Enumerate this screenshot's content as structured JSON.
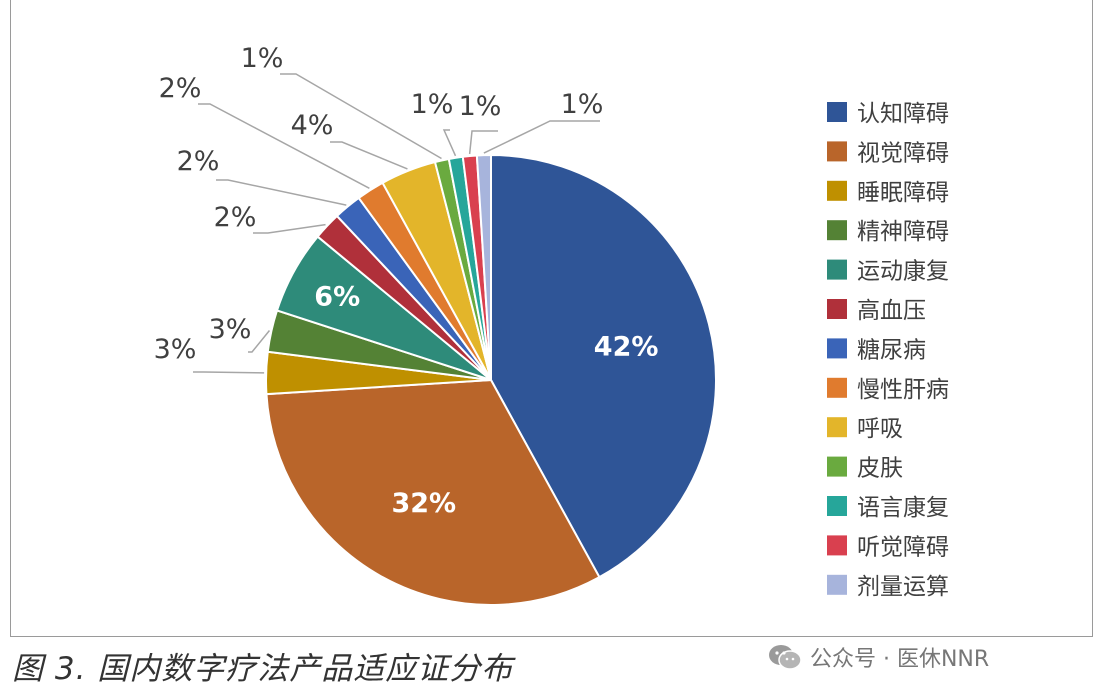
{
  "chart_data": {
    "type": "pie",
    "title": "",
    "legend_position": "right",
    "slices": [
      {
        "label": "认知障碍",
        "value": 42,
        "display": "42%",
        "color": "#2f5597"
      },
      {
        "label": "视觉障碍",
        "value": 32,
        "display": "32%",
        "color": "#b9652a"
      },
      {
        "label": "睡眠障碍",
        "value": 3,
        "display": "3%",
        "color": "#bf9000"
      },
      {
        "label": "精神障碍",
        "value": 3,
        "display": "3%",
        "color": "#548235"
      },
      {
        "label": "运动康复",
        "value": 6,
        "display": "6%",
        "color": "#2e8b7a"
      },
      {
        "label": "高血压",
        "value": 2,
        "display": "2%",
        "color": "#b0303a"
      },
      {
        "label": "糖尿病",
        "value": 2,
        "display": "2%",
        "color": "#3a64b8"
      },
      {
        "label": "慢性肝病",
        "value": 2,
        "display": "2%",
        "color": "#e07b2e"
      },
      {
        "label": "呼吸",
        "value": 4,
        "display": "4%",
        "color": "#e3b52a"
      },
      {
        "label": "皮肤",
        "value": 1,
        "display": "1%",
        "color": "#6aaa3f"
      },
      {
        "label": "语言康复",
        "value": 1,
        "display": "1%",
        "color": "#26a69a"
      },
      {
        "label": "听觉障碍",
        "value": 1,
        "display": "1%",
        "color": "#d9404f"
      },
      {
        "label": "剂量运算",
        "value": 1,
        "display": "1%",
        "color": "#a7b4dc"
      }
    ]
  },
  "caption": "图 3. 国内数字疗法产品适应证分布",
  "watermark": {
    "text": "公众号 · 医休NNR",
    "icon": "wechat-icon"
  }
}
